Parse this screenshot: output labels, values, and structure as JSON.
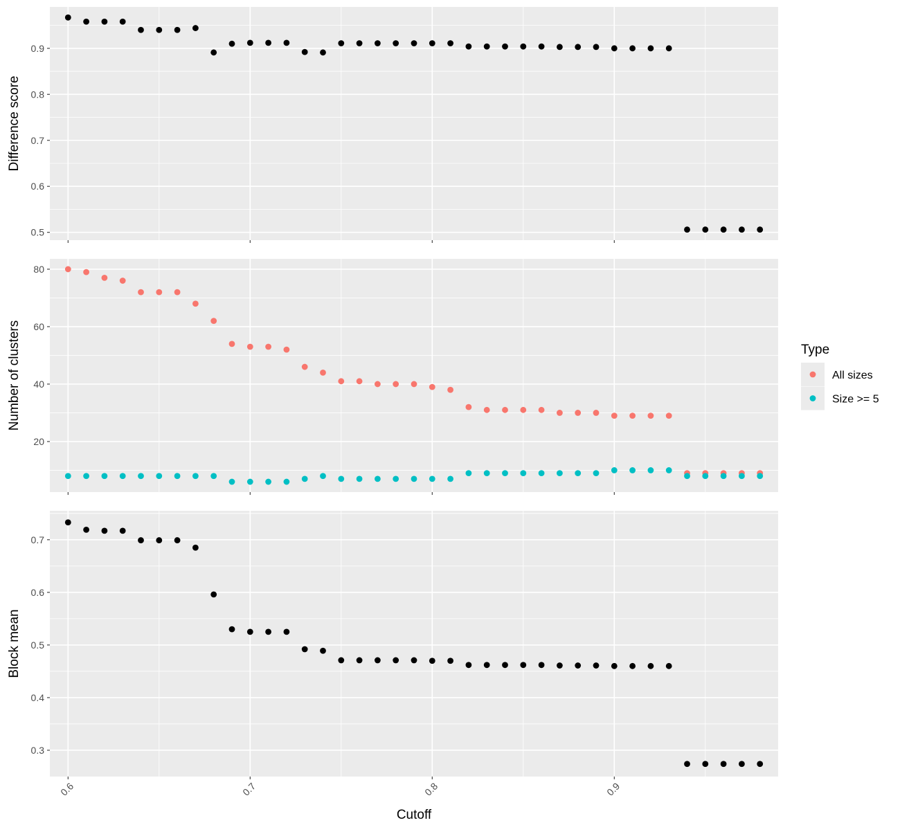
{
  "chart_data": [
    {
      "type": "scatter",
      "panel": "top",
      "ylabel": "Difference score",
      "xlim": [
        0.59,
        0.99
      ],
      "ylim": [
        0.483,
        0.99
      ],
      "yticks": [
        0.5,
        0.6,
        0.7,
        0.8,
        0.9
      ],
      "ytick_labels": [
        "0.5",
        "0.6",
        "0.7",
        "0.8",
        "0.9"
      ],
      "grid": true,
      "series": [
        {
          "color": "#000000",
          "x": [
            0.6,
            0.61,
            0.62,
            0.63,
            0.64,
            0.65,
            0.66,
            0.67,
            0.68,
            0.69,
            0.7,
            0.71,
            0.72,
            0.73,
            0.74,
            0.75,
            0.76,
            0.77,
            0.78,
            0.79,
            0.8,
            0.81,
            0.82,
            0.83,
            0.84,
            0.85,
            0.86,
            0.87,
            0.88,
            0.89,
            0.9,
            0.91,
            0.92,
            0.93,
            0.94,
            0.95,
            0.96,
            0.97,
            0.98
          ],
          "y": [
            0.967,
            0.958,
            0.958,
            0.958,
            0.94,
            0.94,
            0.94,
            0.944,
            0.891,
            0.91,
            0.912,
            0.912,
            0.912,
            0.892,
            0.891,
            0.911,
            0.911,
            0.911,
            0.911,
            0.911,
            0.911,
            0.911,
            0.904,
            0.904,
            0.904,
            0.904,
            0.904,
            0.903,
            0.903,
            0.903,
            0.9,
            0.9,
            0.9,
            0.9,
            0.506,
            0.506,
            0.506,
            0.506,
            0.506
          ]
        }
      ]
    },
    {
      "type": "scatter",
      "panel": "middle",
      "ylabel": "Number of clusters",
      "xlim": [
        0.59,
        0.99
      ],
      "ylim": [
        2.4,
        83.6
      ],
      "yticks": [
        20,
        40,
        60,
        80
      ],
      "ytick_labels": [
        "20",
        "40",
        "60",
        "80"
      ],
      "grid": true,
      "legend": {
        "title": "Type",
        "placement": "right",
        "entries": [
          {
            "label": "All sizes",
            "color": "#F8766D"
          },
          {
            "label": "Size >= 5",
            "color": "#00BFC4"
          }
        ]
      },
      "series": [
        {
          "name": "All sizes",
          "color": "#F8766D",
          "x": [
            0.6,
            0.61,
            0.62,
            0.63,
            0.64,
            0.65,
            0.66,
            0.67,
            0.68,
            0.69,
            0.7,
            0.71,
            0.72,
            0.73,
            0.74,
            0.75,
            0.76,
            0.77,
            0.78,
            0.79,
            0.8,
            0.81,
            0.82,
            0.83,
            0.84,
            0.85,
            0.86,
            0.87,
            0.88,
            0.89,
            0.9,
            0.91,
            0.92,
            0.93,
            0.94,
            0.95,
            0.96,
            0.97,
            0.98
          ],
          "y": [
            80,
            79,
            77,
            76,
            72,
            72,
            72,
            68,
            62,
            54,
            53,
            53,
            52,
            46,
            44,
            41,
            41,
            40,
            40,
            40,
            39,
            38,
            32,
            31,
            31,
            31,
            31,
            30,
            30,
            30,
            29,
            29,
            29,
            29,
            9,
            9,
            9,
            9,
            9
          ]
        },
        {
          "name": "Size >= 5",
          "color": "#00BFC4",
          "x": [
            0.6,
            0.61,
            0.62,
            0.63,
            0.64,
            0.65,
            0.66,
            0.67,
            0.68,
            0.69,
            0.7,
            0.71,
            0.72,
            0.73,
            0.74,
            0.75,
            0.76,
            0.77,
            0.78,
            0.79,
            0.8,
            0.81,
            0.82,
            0.83,
            0.84,
            0.85,
            0.86,
            0.87,
            0.88,
            0.89,
            0.9,
            0.91,
            0.92,
            0.93,
            0.94,
            0.95,
            0.96,
            0.97,
            0.98
          ],
          "y": [
            8,
            8,
            8,
            8,
            8,
            8,
            8,
            8,
            8,
            6,
            6,
            6,
            6,
            7,
            8,
            7,
            7,
            7,
            7,
            7,
            7,
            7,
            9,
            9,
            9,
            9,
            9,
            9,
            9,
            9,
            10,
            10,
            10,
            10,
            8,
            8,
            8,
            8,
            8
          ]
        }
      ]
    },
    {
      "type": "scatter",
      "panel": "bottom",
      "ylabel": "Block mean",
      "xlabel": "Cutoff",
      "xlim": [
        0.59,
        0.99
      ],
      "ylim": [
        0.25,
        0.755
      ],
      "yticks": [
        0.3,
        0.4,
        0.5,
        0.6,
        0.7
      ],
      "ytick_labels": [
        "0.3",
        "0.4",
        "0.5",
        "0.6",
        "0.7"
      ],
      "xticks": [
        0.6,
        0.7,
        0.8,
        0.9
      ],
      "xtick_labels": [
        "0.6",
        "0.7",
        "0.8",
        "0.9"
      ],
      "grid": true,
      "series": [
        {
          "color": "#000000",
          "x": [
            0.6,
            0.61,
            0.62,
            0.63,
            0.64,
            0.65,
            0.66,
            0.67,
            0.68,
            0.69,
            0.7,
            0.71,
            0.72,
            0.73,
            0.74,
            0.75,
            0.76,
            0.77,
            0.78,
            0.79,
            0.8,
            0.81,
            0.82,
            0.83,
            0.84,
            0.85,
            0.86,
            0.87,
            0.88,
            0.89,
            0.9,
            0.91,
            0.92,
            0.93,
            0.94,
            0.95,
            0.96,
            0.97,
            0.98
          ],
          "y": [
            0.733,
            0.719,
            0.717,
            0.717,
            0.699,
            0.699,
            0.699,
            0.685,
            0.596,
            0.53,
            0.525,
            0.525,
            0.525,
            0.492,
            0.489,
            0.471,
            0.471,
            0.471,
            0.471,
            0.471,
            0.47,
            0.47,
            0.462,
            0.462,
            0.462,
            0.462,
            0.462,
            0.461,
            0.461,
            0.461,
            0.46,
            0.46,
            0.46,
            0.46,
            0.274,
            0.274,
            0.274,
            0.274,
            0.274
          ]
        }
      ]
    }
  ]
}
